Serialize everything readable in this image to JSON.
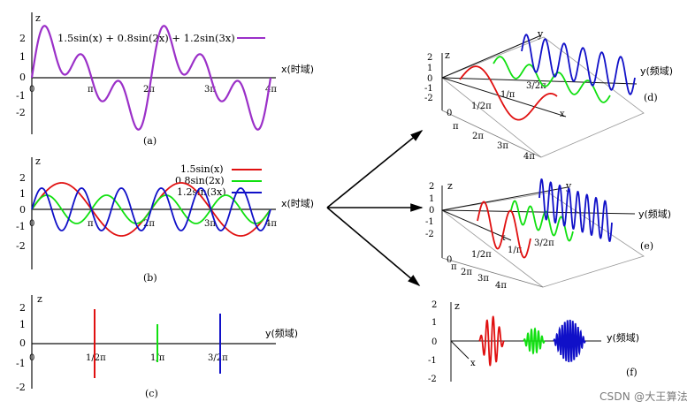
{
  "panel_a": {
    "label": "(a)",
    "zlabel": "z",
    "xlabel": "x(时域)",
    "legend": "1.5sin(x) + 0.8sin(2x) + 1.2sin(3x)",
    "yticks": [
      "2",
      "1",
      "0",
      "-1",
      "-2"
    ],
    "xticks": [
      "0",
      "π",
      "2π",
      "3π",
      "4π"
    ]
  },
  "panel_b": {
    "label": "(b)",
    "zlabel": "z",
    "xlabel": "x(时域)",
    "legend": [
      "1.5sin(x)",
      "0.8sin(2x)",
      "1.2sin(3x)"
    ],
    "yticks": [
      "2",
      "1",
      "0",
      "-1",
      "-2"
    ],
    "xticks": [
      "0",
      "π",
      "2π",
      "3π",
      "4π"
    ]
  },
  "panel_c": {
    "label": "(c)",
    "zlabel": "z",
    "ylabel": "y(频域)",
    "yticks": [
      "2",
      "1",
      "0",
      "-1",
      "-2"
    ],
    "xticks": [
      "0",
      "1/2π",
      "1/π",
      "3/2π"
    ]
  },
  "panel_d": {
    "label": "(d)",
    "z": "z",
    "y_axis": "y",
    "y_freq": "y(频域)",
    "x": "x",
    "zticks": [
      "2",
      "1",
      "0",
      "-1",
      "-2"
    ],
    "freq_ticks": [
      "1/2π",
      "1/π",
      "3/2π"
    ],
    "x_ticks": [
      "0",
      "π",
      "2π",
      "3π",
      "4π"
    ]
  },
  "panel_e": {
    "label": "(e)",
    "z": "z",
    "y_axis": "y",
    "y_freq": "y(频域)",
    "x": "x",
    "zticks": [
      "2",
      "1",
      "0",
      "-1",
      "-2"
    ],
    "freq_ticks": [
      "1/2π",
      "1/π",
      "3/2π"
    ],
    "x_ticks": [
      "0",
      "π",
      "2π",
      "3π",
      "4π"
    ]
  },
  "panel_f": {
    "label": "(f)",
    "z": "z",
    "y_freq": "y(频域)",
    "x": "x",
    "zticks": [
      "2",
      "1",
      "0",
      "-1",
      "-2"
    ]
  },
  "watermark": "CSDN @大王算法",
  "colors": {
    "sum": "#9b30c8",
    "red": "#e01010",
    "green": "#10e010",
    "blue": "#1010c8",
    "axis": "#111111"
  }
}
